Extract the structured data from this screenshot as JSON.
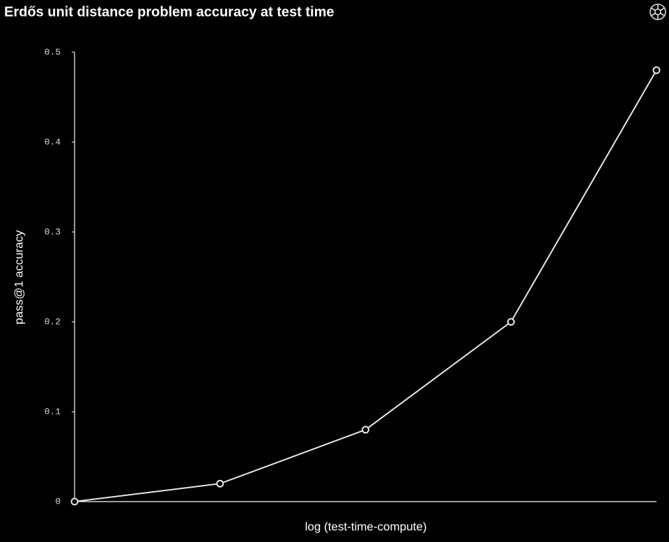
{
  "chart_data": {
    "type": "line",
    "title": "Erdős unit distance problem accuracy at test time",
    "x_label": "log (test-time-compute)",
    "y_label": "pass@1 accuracy",
    "categories": [
      null,
      null,
      null,
      null,
      null
    ],
    "series": [
      {
        "color": "#e8e8e8",
        "values": [
          0,
          0.02,
          0.08,
          0.2,
          0.48
        ]
      }
    ],
    "ylim": [
      0,
      0.5
    ],
    "yticks": [
      0,
      0.1,
      0.2,
      0.3,
      0.4,
      0.5
    ]
  }
}
